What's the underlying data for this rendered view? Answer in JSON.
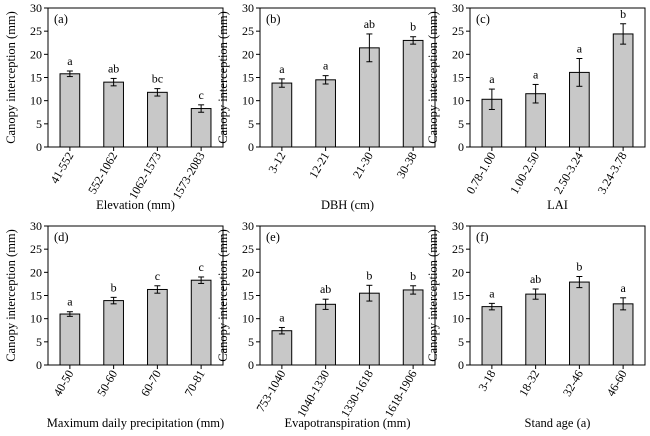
{
  "colors": {
    "bar_fill": "#c8c8c8",
    "bar_stroke": "#000000",
    "axis": "#000000"
  },
  "chart_data": [
    {
      "type": "bar",
      "panel": "(a)",
      "categories": [
        "41-552",
        "552-1062",
        "1062-1573",
        "1573-2083"
      ],
      "values": [
        15.8,
        14.0,
        11.8,
        8.3
      ],
      "errors": [
        0.6,
        0.8,
        0.8,
        0.8
      ],
      "letters": [
        "a",
        "ab",
        "bc",
        "c"
      ],
      "xlabel": "Elevation (mm)",
      "ylabel": "Canopy interception (mm)",
      "ylim": [
        0,
        30
      ],
      "yticks": [
        0,
        5,
        10,
        15,
        20,
        25,
        30
      ],
      "grid": false
    },
    {
      "type": "bar",
      "panel": "(b)",
      "categories": [
        "3-12",
        "12-21",
        "21-30",
        "30-38"
      ],
      "values": [
        13.8,
        14.5,
        21.4,
        23.0
      ],
      "errors": [
        0.9,
        0.9,
        3.0,
        0.8
      ],
      "letters": [
        "a",
        "a",
        "ab",
        "b"
      ],
      "xlabel": "DBH (cm)",
      "ylabel": "Canopy interception (mm)",
      "ylim": [
        0,
        30
      ],
      "yticks": [
        0,
        5,
        10,
        15,
        20,
        25,
        30
      ],
      "grid": false
    },
    {
      "type": "bar",
      "panel": "(c)",
      "categories": [
        "0.78-1.00",
        "1.00-2.50",
        "2.50-3.24",
        "3.24-3.78"
      ],
      "values": [
        10.3,
        11.5,
        16.1,
        24.4
      ],
      "errors": [
        2.2,
        2.0,
        3.0,
        2.2
      ],
      "letters": [
        "a",
        "a",
        "a",
        "b"
      ],
      "xlabel": "LAI",
      "ylabel": "Canopy interception (mm)",
      "ylim": [
        0,
        30
      ],
      "yticks": [
        0,
        5,
        10,
        15,
        20,
        25,
        30
      ],
      "grid": false
    },
    {
      "type": "bar",
      "panel": "(d)",
      "categories": [
        "40-50",
        "50-60",
        "60-70",
        "70-81"
      ],
      "values": [
        11.0,
        13.9,
        16.3,
        18.3
      ],
      "errors": [
        0.5,
        0.7,
        0.8,
        0.7
      ],
      "letters": [
        "a",
        "b",
        "c",
        "c"
      ],
      "xlabel": "Maximum daily precipitation (mm)",
      "ylabel": "Canopy interception (mm)",
      "ylim": [
        0,
        30
      ],
      "yticks": [
        0,
        5,
        10,
        15,
        20,
        25,
        30
      ],
      "grid": false
    },
    {
      "type": "bar",
      "panel": "(e)",
      "categories": [
        "753-1040",
        "1040-1330",
        "1330-1618",
        "1618-1906"
      ],
      "values": [
        7.4,
        13.1,
        15.5,
        16.2
      ],
      "errors": [
        0.7,
        1.1,
        1.7,
        0.9
      ],
      "letters": [
        "a",
        "ab",
        "b",
        "b"
      ],
      "xlabel": "Evapotranspiration (mm)",
      "ylabel": "Canopy interception (mm)",
      "ylim": [
        0,
        30
      ],
      "yticks": [
        0,
        5,
        10,
        15,
        20,
        25,
        30
      ],
      "grid": false
    },
    {
      "type": "bar",
      "panel": "(f)",
      "categories": [
        "3-18",
        "18-32",
        "32-46",
        "46-60"
      ],
      "values": [
        12.6,
        15.3,
        17.9,
        13.2
      ],
      "errors": [
        0.7,
        1.1,
        1.2,
        1.3
      ],
      "letters": [
        "a",
        "ab",
        "b",
        "a"
      ],
      "xlabel": "Stand age (a)",
      "ylabel": "Canopy interception (mm)",
      "ylim": [
        0,
        30
      ],
      "yticks": [
        0,
        5,
        10,
        15,
        20,
        25,
        30
      ],
      "grid": false
    }
  ]
}
